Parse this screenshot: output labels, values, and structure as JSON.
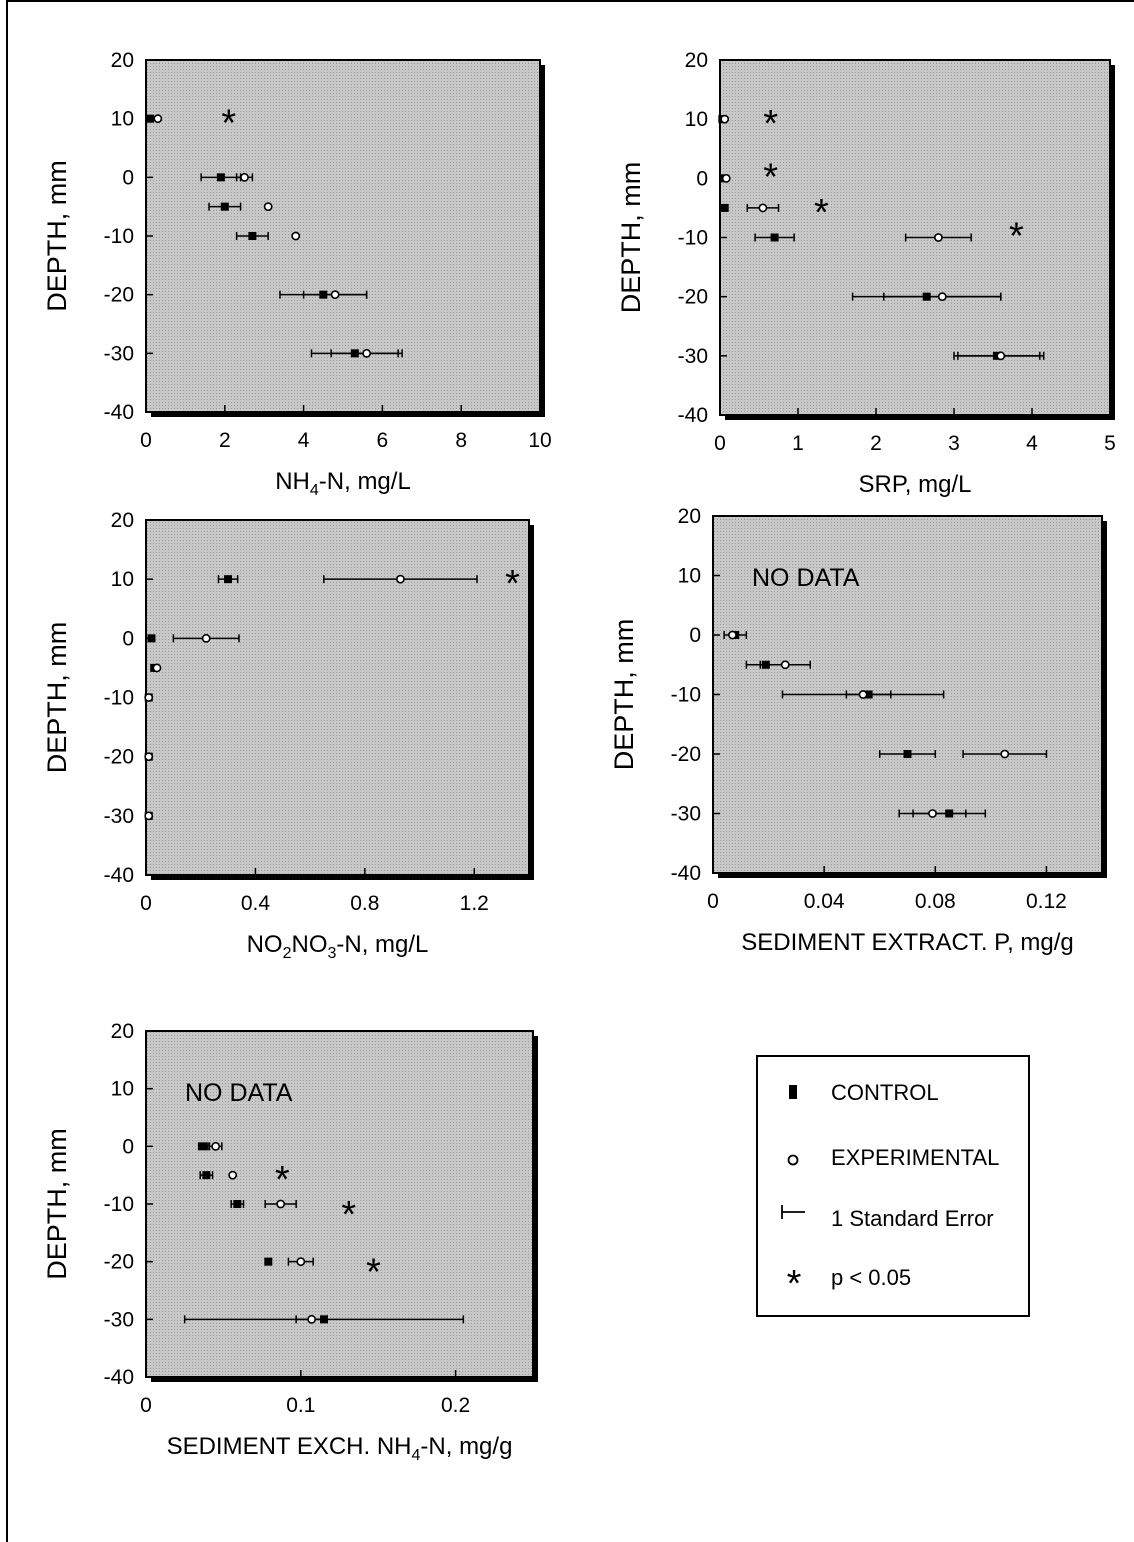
{
  "chart_data": [
    {
      "type": "scatter",
      "ylabel": "DEPTH, mm",
      "xlabel": {
        "base": "NH",
        "sub1": "4",
        "mid": "-N, mg/L",
        "sub2": "",
        "tail": ""
      },
      "xlim": [
        0,
        10
      ],
      "ylim": [
        -40,
        20
      ],
      "xticks": [
        "0",
        "2",
        "4",
        "6",
        "8",
        "10"
      ],
      "yticks": [
        "20",
        "10",
        "0",
        "-10",
        "-20",
        "-30",
        "-40"
      ],
      "series": [
        {
          "name": "CONTROL",
          "points": [
            {
              "y": 10,
              "x": 0.1,
              "se": 0
            },
            {
              "y": 0,
              "x": 1.9,
              "se": 0.5
            },
            {
              "y": -5,
              "x": 2.0,
              "se": 0.4
            },
            {
              "y": -10,
              "x": 2.7,
              "se": 0.4
            },
            {
              "y": -20,
              "x": 4.5,
              "se": 1.1
            },
            {
              "y": -30,
              "x": 5.3,
              "se": 1.1
            }
          ]
        },
        {
          "name": "EXPERIMENTAL",
          "points": [
            {
              "y": 10,
              "x": 0.3,
              "se": 0
            },
            {
              "y": 0,
              "x": 2.5,
              "se": 0.2
            },
            {
              "y": -5,
              "x": 3.1,
              "se": 0
            },
            {
              "y": -10,
              "x": 3.8,
              "se": 0
            },
            {
              "y": -20,
              "x": 4.8,
              "se": 0.8
            },
            {
              "y": -30,
              "x": 5.6,
              "se": 0.9
            }
          ]
        }
      ],
      "significance": [
        {
          "x": 2.1,
          "y": 10
        }
      ],
      "annotation": ""
    },
    {
      "type": "scatter",
      "ylabel": "DEPTH, mm",
      "xlabel": {
        "base": "SRP, mg/L",
        "sub1": "",
        "mid": "",
        "sub2": "",
        "tail": ""
      },
      "xlim": [
        0,
        5
      ],
      "ylim": [
        -40,
        20
      ],
      "xticks": [
        "0",
        "1",
        "2",
        "3",
        "4",
        "5"
      ],
      "yticks": [
        "20",
        "10",
        "0",
        "-10",
        "-20",
        "-30",
        "-40"
      ],
      "series": [
        {
          "name": "CONTROL",
          "points": [
            {
              "y": 10,
              "x": 0.03,
              "se": 0
            },
            {
              "y": 0,
              "x": 0.05,
              "se": 0
            },
            {
              "y": -5,
              "x": 0.06,
              "se": 0
            },
            {
              "y": -10,
              "x": 0.7,
              "se": 0.25
            },
            {
              "y": -20,
              "x": 2.65,
              "se": 0.95
            },
            {
              "y": -30,
              "x": 3.55,
              "se": 0.55
            }
          ]
        },
        {
          "name": "EXPERIMENTAL",
          "points": [
            {
              "y": 10,
              "x": 0.06,
              "se": 0
            },
            {
              "y": 0,
              "x": 0.08,
              "se": 0
            },
            {
              "y": -5,
              "x": 0.55,
              "se": 0.2
            },
            {
              "y": -10,
              "x": 2.8,
              "se": 0.42
            },
            {
              "y": -20,
              "x": 2.85,
              "se": 0.75
            },
            {
              "y": -30,
              "x": 3.6,
              "se": 0.55
            }
          ]
        }
      ],
      "significance": [
        {
          "x": 0.65,
          "y": 10
        },
        {
          "x": 0.65,
          "y": 1
        },
        {
          "x": 1.3,
          "y": -5
        },
        {
          "x": 3.8,
          "y": -9
        }
      ],
      "annotation": ""
    },
    {
      "type": "scatter",
      "ylabel": "DEPTH, mm",
      "xlabel": {
        "base": "NO",
        "sub1": "2",
        "mid": "NO",
        "sub2": "3",
        "tail": "-N, mg/L"
      },
      "xlim": [
        0,
        1.4
      ],
      "ylim": [
        -40,
        20
      ],
      "xticks": [
        "0",
        "0.4",
        "0.8",
        "1.2"
      ],
      "yticks": [
        "20",
        "10",
        "0",
        "-10",
        "-20",
        "-30",
        "-40"
      ],
      "series": [
        {
          "name": "CONTROL",
          "points": [
            {
              "y": 10,
              "x": 0.3,
              "se": 0.035
            },
            {
              "y": 0,
              "x": 0.02,
              "se": 0
            },
            {
              "y": -5,
              "x": 0.03,
              "se": 0
            },
            {
              "y": -10,
              "x": 0.01,
              "se": 0
            },
            {
              "y": -20,
              "x": 0.01,
              "se": 0
            },
            {
              "y": -30,
              "x": 0.01,
              "se": 0
            }
          ]
        },
        {
          "name": "EXPERIMENTAL",
          "points": [
            {
              "y": 10,
              "x": 0.93,
              "se": 0.28
            },
            {
              "y": 0,
              "x": 0.22,
              "se": 0.12
            },
            {
              "y": -5,
              "x": 0.04,
              "se": 0
            },
            {
              "y": -10,
              "x": 0.01,
              "se": 0
            },
            {
              "y": -20,
              "x": 0.01,
              "se": 0
            },
            {
              "y": -30,
              "x": 0.01,
              "se": 0
            }
          ]
        }
      ],
      "significance": [
        {
          "x": 1.34,
          "y": 10
        }
      ],
      "annotation": ""
    },
    {
      "type": "scatter",
      "ylabel": "DEPTH, mm",
      "xlabel": {
        "base": "SEDIMENT EXTRACT. P, mg/g",
        "sub1": "",
        "mid": "",
        "sub2": "",
        "tail": ""
      },
      "xlim": [
        0,
        0.14
      ],
      "ylim": [
        -40,
        20
      ],
      "xticks": [
        "0",
        "0.04",
        "0.08",
        "0.12"
      ],
      "yticks": [
        "20",
        "10",
        "0",
        "-10",
        "-20",
        "-30",
        "-40"
      ],
      "series": [
        {
          "name": "CONTROL",
          "points": [
            {
              "y": 0,
              "x": 0.008,
              "se": 0.004
            },
            {
              "y": -5,
              "x": 0.019,
              "se": 0.007
            },
            {
              "y": -10,
              "x": 0.056,
              "se": 0.008
            },
            {
              "y": -20,
              "x": 0.07,
              "se": 0.01
            },
            {
              "y": -30,
              "x": 0.085,
              "se": 0.013
            }
          ]
        },
        {
          "name": "EXPERIMENTAL",
          "points": [
            {
              "y": 0,
              "x": 0.007,
              "se": 0
            },
            {
              "y": -5,
              "x": 0.026,
              "se": 0.009
            },
            {
              "y": -10,
              "x": 0.054,
              "se": 0.029
            },
            {
              "y": -20,
              "x": 0.105,
              "se": 0.015
            },
            {
              "y": -30,
              "x": 0.079,
              "se": 0.012
            }
          ]
        }
      ],
      "significance": [],
      "annotation": "NO DATA"
    },
    {
      "type": "scatter",
      "ylabel": "DEPTH, mm",
      "xlabel": {
        "base": "SEDIMENT EXCH. NH",
        "sub1": "4",
        "mid": "-N, mg/g",
        "sub2": "",
        "tail": ""
      },
      "xlim": [
        0,
        0.25
      ],
      "ylim": [
        -40,
        20
      ],
      "xticks": [
        "0",
        "0.1",
        "0.2"
      ],
      "yticks": [
        "20",
        "10",
        "0",
        "-10",
        "-20",
        "-30",
        "-40"
      ],
      "series": [
        {
          "name": "CONTROL",
          "points": [
            {
              "y": 0,
              "x": 0.037,
              "se": 0.003
            },
            {
              "y": -5,
              "x": 0.039,
              "se": 0.004
            },
            {
              "y": -10,
              "x": 0.059,
              "se": 0.004
            },
            {
              "y": -20,
              "x": 0.079,
              "se": 0
            },
            {
              "y": -30,
              "x": 0.115,
              "se": 0.09
            }
          ]
        },
        {
          "name": "EXPERIMENTAL",
          "points": [
            {
              "y": 0,
              "x": 0.045,
              "se": 0.004
            },
            {
              "y": -5,
              "x": 0.056,
              "se": 0
            },
            {
              "y": -10,
              "x": 0.087,
              "se": 0.01
            },
            {
              "y": -20,
              "x": 0.1,
              "se": 0.008
            },
            {
              "y": -30,
              "x": 0.107,
              "se": 0.01
            }
          ]
        }
      ],
      "significance": [
        {
          "x": 0.088,
          "y": -5
        },
        {
          "x": 0.131,
          "y": -11
        },
        {
          "x": 0.147,
          "y": -21
        }
      ],
      "annotation": "NO DATA"
    }
  ],
  "legend": {
    "items": [
      {
        "key": "control",
        "label": "CONTROL"
      },
      {
        "key": "experimental",
        "label": "EXPERIMENTAL"
      },
      {
        "key": "se",
        "label": "1 Standard Error"
      },
      {
        "key": "sig",
        "label": "p < 0.05"
      }
    ]
  },
  "colors": {
    "plot_background": "#c8c8c8",
    "ink": "#000000"
  }
}
